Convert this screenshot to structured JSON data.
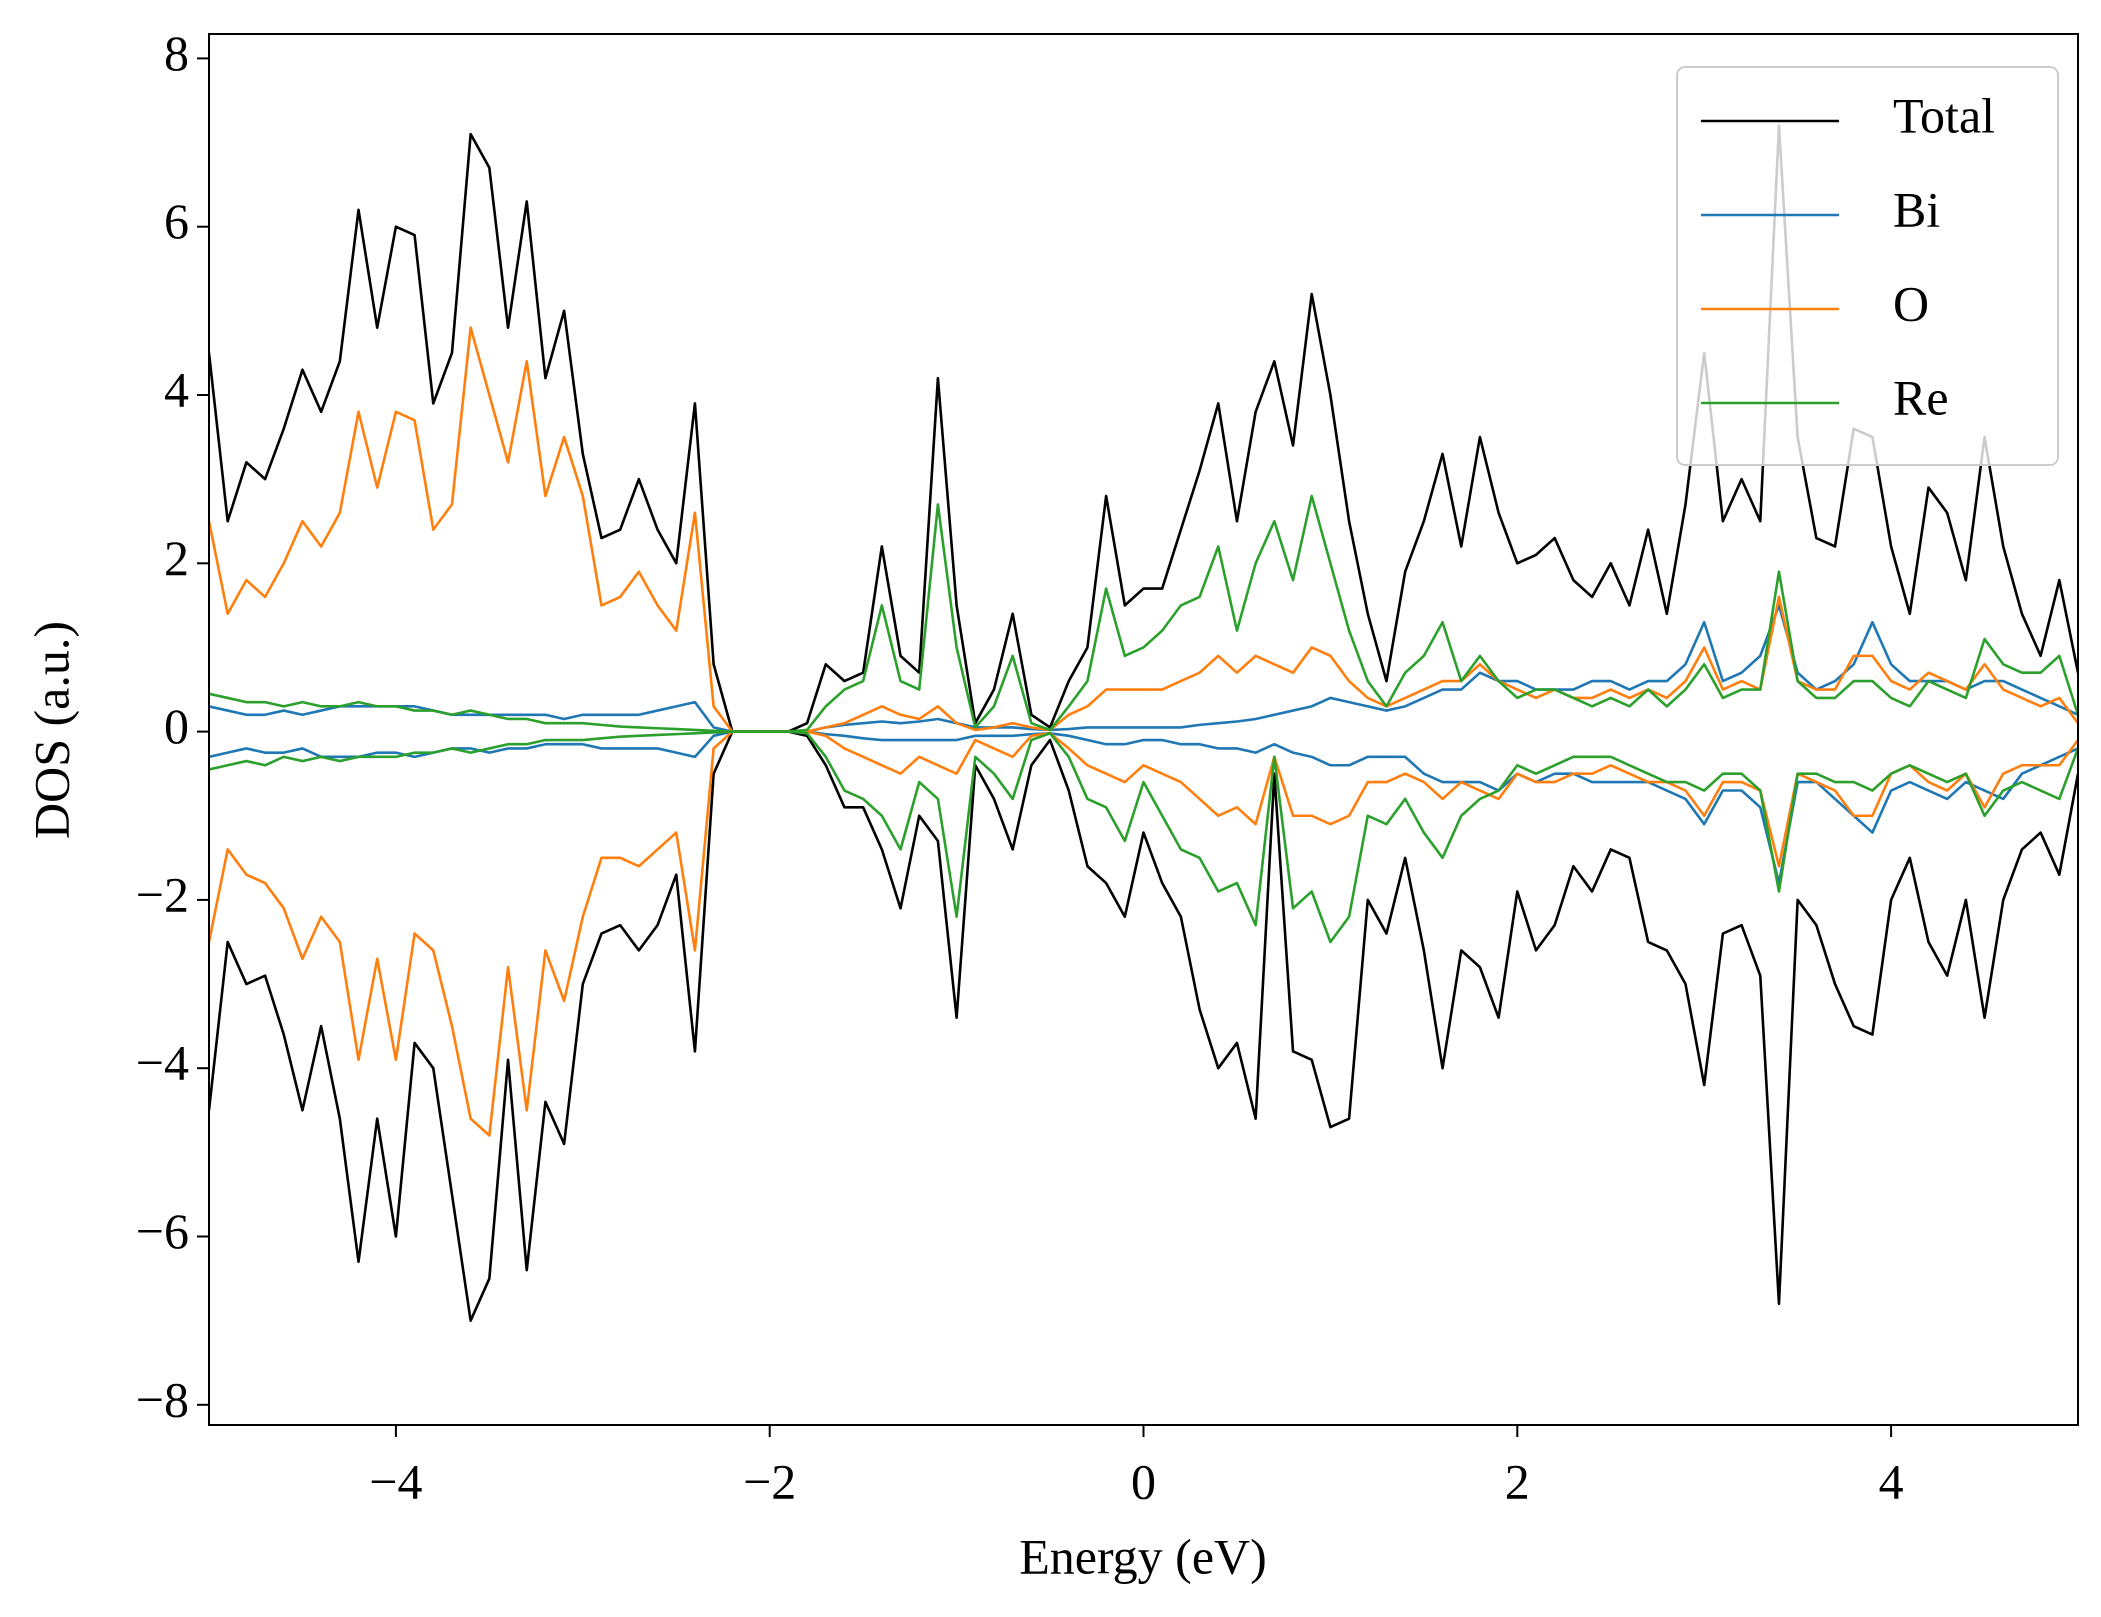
{
  "chart_data": {
    "type": "line",
    "xlabel": "Energy (eV)",
    "ylabel": "DOS (a.u.)",
    "xlim": [
      -5,
      5
    ],
    "ylim": [
      -8.24,
      8.29
    ],
    "xticks": [
      {
        "value": -4,
        "label": "−4"
      },
      {
        "value": -2,
        "label": "−2"
      },
      0,
      2,
      4
    ],
    "yticks": [
      {
        "value": -8,
        "label": "−8"
      },
      {
        "value": -6,
        "label": "−6"
      },
      {
        "value": -4,
        "label": "−4"
      },
      {
        "value": -2,
        "label": "−2"
      },
      0,
      2,
      4,
      6,
      8
    ],
    "legend": "upper right",
    "x": [
      -5.0,
      -4.9,
      -4.8,
      -4.7,
      -4.6,
      -4.5,
      -4.4,
      -4.3,
      -4.2,
      -4.1,
      -4.0,
      -3.9,
      -3.8,
      -3.7,
      -3.6,
      -3.5,
      -3.4,
      -3.3,
      -3.2,
      -3.1,
      -3.0,
      -2.9,
      -2.8,
      -2.7,
      -2.6,
      -2.5,
      -2.4,
      -2.3,
      -2.2,
      -2.1,
      -2.0,
      -1.9,
      -1.8,
      -1.7,
      -1.6,
      -1.5,
      -1.4,
      -1.3,
      -1.2,
      -1.1,
      -1.0,
      -0.9,
      -0.8,
      -0.7,
      -0.6,
      -0.5,
      -0.4,
      -0.3,
      -0.2,
      -0.1,
      0.0,
      0.1,
      0.2,
      0.3,
      0.4,
      0.5,
      0.6,
      0.7,
      0.8,
      0.9,
      1.0,
      1.1,
      1.2,
      1.3,
      1.4,
      1.5,
      1.6,
      1.7,
      1.8,
      1.9,
      2.0,
      2.1,
      2.2,
      2.3,
      2.4,
      2.5,
      2.6,
      2.7,
      2.8,
      2.9,
      3.0,
      3.1,
      3.2,
      3.3,
      3.4,
      3.5,
      3.6,
      3.7,
      3.8,
      3.9,
      4.0,
      4.1,
      4.2,
      4.3,
      4.4,
      4.5,
      4.6,
      4.7,
      4.8,
      4.9,
      5.0
    ],
    "series": [
      {
        "name": "Total",
        "color": "#000000",
        "values": [
          4.5,
          2.5,
          3.2,
          3.0,
          3.6,
          4.3,
          3.8,
          4.4,
          6.2,
          4.8,
          6.0,
          5.9,
          3.9,
          4.5,
          7.1,
          6.7,
          4.8,
          6.3,
          4.2,
          5.0,
          3.3,
          2.3,
          2.4,
          3.0,
          2.4,
          2.0,
          3.9,
          0.8,
          0,
          0,
          0,
          0,
          0.1,
          0.8,
          0.6,
          0.7,
          2.2,
          0.9,
          0.7,
          4.2,
          1.5,
          0.1,
          0.5,
          1.4,
          0.2,
          0.05,
          0.6,
          1.0,
          2.8,
          1.5,
          1.7,
          1.7,
          2.4,
          3.1,
          3.9,
          2.5,
          3.8,
          4.4,
          3.4,
          5.2,
          4.0,
          2.5,
          1.4,
          0.6,
          1.9,
          2.5,
          3.3,
          2.2,
          3.5,
          2.6,
          2.0,
          2.1,
          2.3,
          1.8,
          1.6,
          2.0,
          1.5,
          2.4,
          1.4,
          2.7,
          4.5,
          2.5,
          3.0,
          2.5,
          7.2,
          3.5,
          2.3,
          2.2,
          3.6,
          3.5,
          2.2,
          1.4,
          2.9,
          2.6,
          1.8,
          3.5,
          2.2,
          1.4,
          0.9,
          1.8,
          0.7
        ],
        "values_down": [
          -4.5,
          -2.5,
          -3.0,
          -2.9,
          -3.6,
          -4.5,
          -3.5,
          -4.6,
          -6.3,
          -4.6,
          -6.0,
          -3.7,
          -4.0,
          -5.5,
          -7.0,
          -6.5,
          -3.9,
          -6.4,
          -4.4,
          -4.9,
          -3.0,
          -2.4,
          -2.3,
          -2.6,
          -2.3,
          -1.7,
          -3.8,
          -0.5,
          0,
          0,
          0,
          0,
          -0.05,
          -0.4,
          -0.9,
          -0.9,
          -1.4,
          -2.1,
          -1.0,
          -1.3,
          -3.4,
          -0.4,
          -0.8,
          -1.4,
          -0.4,
          -0.1,
          -0.7,
          -1.6,
          -1.8,
          -2.2,
          -1.2,
          -1.8,
          -2.2,
          -3.3,
          -4.0,
          -3.7,
          -4.6,
          -0.5,
          -3.8,
          -3.9,
          -4.7,
          -4.6,
          -2.0,
          -2.4,
          -1.5,
          -2.6,
          -4.0,
          -2.6,
          -2.8,
          -3.4,
          -1.9,
          -2.6,
          -2.3,
          -1.6,
          -1.9,
          -1.4,
          -1.5,
          -2.5,
          -2.6,
          -3.0,
          -4.2,
          -2.4,
          -2.3,
          -2.9,
          -6.8,
          -2.0,
          -2.3,
          -3.0,
          -3.5,
          -3.6,
          -2.0,
          -1.5,
          -2.5,
          -2.9,
          -2.0,
          -3.4,
          -2.0,
          -1.4,
          -1.2,
          -1.7,
          -0.5
        ]
      },
      {
        "name": "Bi",
        "color": "#1f77b4",
        "values": [
          0.3,
          0.25,
          0.2,
          0.2,
          0.25,
          0.2,
          0.25,
          0.3,
          0.3,
          0.3,
          0.3,
          0.3,
          0.25,
          0.2,
          0.2,
          0.2,
          0.2,
          0.2,
          0.2,
          0.15,
          0.2,
          0.2,
          0.2,
          0.2,
          0.25,
          0.3,
          0.35,
          0.05,
          0,
          0,
          0,
          0,
          0,
          0.05,
          0.08,
          0.1,
          0.12,
          0.1,
          0.12,
          0.15,
          0.1,
          0.05,
          0.05,
          0.05,
          0.03,
          0.02,
          0.03,
          0.05,
          0.05,
          0.05,
          0.05,
          0.05,
          0.05,
          0.08,
          0.1,
          0.12,
          0.15,
          0.2,
          0.25,
          0.3,
          0.4,
          0.35,
          0.3,
          0.25,
          0.3,
          0.4,
          0.5,
          0.5,
          0.7,
          0.6,
          0.6,
          0.5,
          0.5,
          0.5,
          0.6,
          0.6,
          0.5,
          0.6,
          0.6,
          0.8,
          1.3,
          0.6,
          0.7,
          0.9,
          1.5,
          0.7,
          0.5,
          0.6,
          0.8,
          1.3,
          0.8,
          0.6,
          0.6,
          0.6,
          0.5,
          0.6,
          0.6,
          0.5,
          0.4,
          0.3,
          0.2
        ],
        "values_down": [
          -0.3,
          -0.25,
          -0.2,
          -0.25,
          -0.25,
          -0.2,
          -0.3,
          -0.3,
          -0.3,
          -0.25,
          -0.25,
          -0.3,
          -0.25,
          -0.2,
          -0.2,
          -0.25,
          -0.2,
          -0.2,
          -0.15,
          -0.15,
          -0.15,
          -0.2,
          -0.2,
          -0.2,
          -0.2,
          -0.25,
          -0.3,
          -0.05,
          0,
          0,
          0,
          0,
          0,
          -0.03,
          -0.05,
          -0.08,
          -0.1,
          -0.1,
          -0.1,
          -0.1,
          -0.1,
          -0.05,
          -0.05,
          -0.05,
          -0.03,
          -0.02,
          -0.05,
          -0.1,
          -0.15,
          -0.15,
          -0.1,
          -0.1,
          -0.15,
          -0.15,
          -0.2,
          -0.2,
          -0.25,
          -0.15,
          -0.25,
          -0.3,
          -0.4,
          -0.4,
          -0.3,
          -0.3,
          -0.3,
          -0.5,
          -0.6,
          -0.6,
          -0.6,
          -0.7,
          -0.5,
          -0.6,
          -0.5,
          -0.5,
          -0.6,
          -0.6,
          -0.6,
          -0.6,
          -0.7,
          -0.8,
          -1.1,
          -0.7,
          -0.7,
          -0.9,
          -1.8,
          -0.6,
          -0.6,
          -0.8,
          -1.0,
          -1.2,
          -0.7,
          -0.6,
          -0.7,
          -0.8,
          -0.6,
          -0.7,
          -0.8,
          -0.5,
          -0.4,
          -0.3,
          -0.2
        ]
      },
      {
        "name": "O",
        "color": "#ff7f0e",
        "values": [
          2.5,
          1.4,
          1.8,
          1.6,
          2.0,
          2.5,
          2.2,
          2.6,
          3.8,
          2.9,
          3.8,
          3.7,
          2.4,
          2.7,
          4.8,
          4.0,
          3.2,
          4.4,
          2.8,
          3.5,
          2.8,
          1.5,
          1.6,
          1.9,
          1.5,
          1.2,
          2.6,
          0.3,
          0,
          0,
          0,
          0,
          0,
          0.05,
          0.1,
          0.2,
          0.3,
          0.2,
          0.15,
          0.3,
          0.1,
          0.02,
          0.05,
          0.1,
          0.05,
          0.02,
          0.2,
          0.3,
          0.5,
          0.5,
          0.5,
          0.5,
          0.6,
          0.7,
          0.9,
          0.7,
          0.9,
          0.8,
          0.7,
          1.0,
          0.9,
          0.6,
          0.4,
          0.3,
          0.4,
          0.5,
          0.6,
          0.6,
          0.8,
          0.6,
          0.5,
          0.4,
          0.5,
          0.4,
          0.4,
          0.5,
          0.4,
          0.5,
          0.4,
          0.6,
          1.0,
          0.5,
          0.6,
          0.5,
          1.6,
          0.6,
          0.5,
          0.5,
          0.9,
          0.9,
          0.6,
          0.5,
          0.7,
          0.6,
          0.5,
          0.8,
          0.5,
          0.4,
          0.3,
          0.4,
          0.1
        ],
        "values_down": [
          -2.5,
          -1.4,
          -1.7,
          -1.8,
          -2.1,
          -2.7,
          -2.2,
          -2.5,
          -3.9,
          -2.7,
          -3.9,
          -2.4,
          -2.6,
          -3.5,
          -4.6,
          -4.8,
          -2.8,
          -4.5,
          -2.6,
          -3.2,
          -2.2,
          -1.5,
          -1.5,
          -1.6,
          -1.4,
          -1.2,
          -2.6,
          -0.2,
          0,
          0,
          0,
          0,
          0,
          -0.05,
          -0.2,
          -0.3,
          -0.4,
          -0.5,
          -0.3,
          -0.4,
          -0.5,
          -0.1,
          -0.2,
          -0.3,
          -0.05,
          -0.02,
          -0.2,
          -0.4,
          -0.5,
          -0.6,
          -0.4,
          -0.5,
          -0.6,
          -0.8,
          -1.0,
          -0.9,
          -1.1,
          -0.3,
          -1.0,
          -1.0,
          -1.1,
          -1.0,
          -0.6,
          -0.6,
          -0.5,
          -0.6,
          -0.8,
          -0.6,
          -0.7,
          -0.8,
          -0.5,
          -0.6,
          -0.6,
          -0.5,
          -0.5,
          -0.4,
          -0.5,
          -0.6,
          -0.6,
          -0.7,
          -1.0,
          -0.6,
          -0.6,
          -0.7,
          -1.6,
          -0.5,
          -0.6,
          -0.7,
          -1.0,
          -1.0,
          -0.5,
          -0.4,
          -0.6,
          -0.7,
          -0.5,
          -0.9,
          -0.5,
          -0.4,
          -0.4,
          -0.4,
          -0.1
        ]
      },
      {
        "name": "Re",
        "color": "#2ca02c",
        "values": [
          0.45,
          0.4,
          0.35,
          0.35,
          0.3,
          0.35,
          0.3,
          0.3,
          0.35,
          0.3,
          0.3,
          0.25,
          0.25,
          0.2,
          0.25,
          0.2,
          0.15,
          0.15,
          0.1,
          0.1,
          0.1,
          0.08,
          0.06,
          0.05,
          0.04,
          0.03,
          0.02,
          0.01,
          0,
          0,
          0,
          0,
          0.02,
          0.3,
          0.5,
          0.6,
          1.5,
          0.6,
          0.5,
          2.7,
          1.0,
          0.05,
          0.3,
          0.9,
          0.1,
          0.02,
          0.3,
          0.6,
          1.7,
          0.9,
          1.0,
          1.2,
          1.5,
          1.6,
          2.2,
          1.2,
          2.0,
          2.5,
          1.8,
          2.8,
          2.0,
          1.2,
          0.6,
          0.3,
          0.7,
          0.9,
          1.3,
          0.6,
          0.9,
          0.6,
          0.4,
          0.5,
          0.5,
          0.4,
          0.3,
          0.4,
          0.3,
          0.5,
          0.3,
          0.5,
          0.8,
          0.4,
          0.5,
          0.5,
          1.9,
          0.6,
          0.4,
          0.4,
          0.6,
          0.6,
          0.4,
          0.3,
          0.6,
          0.5,
          0.4,
          1.1,
          0.8,
          0.7,
          0.7,
          0.9,
          0.2
        ],
        "values_down": [
          -0.45,
          -0.4,
          -0.35,
          -0.4,
          -0.3,
          -0.35,
          -0.3,
          -0.35,
          -0.3,
          -0.3,
          -0.3,
          -0.25,
          -0.25,
          -0.2,
          -0.25,
          -0.2,
          -0.15,
          -0.15,
          -0.1,
          -0.1,
          -0.1,
          -0.08,
          -0.06,
          -0.05,
          -0.04,
          -0.03,
          -0.02,
          -0.01,
          0,
          0,
          0,
          0,
          -0.02,
          -0.3,
          -0.7,
          -0.8,
          -1.0,
          -1.4,
          -0.6,
          -0.8,
          -2.2,
          -0.3,
          -0.5,
          -0.8,
          -0.1,
          -0.02,
          -0.3,
          -0.8,
          -0.9,
          -1.3,
          -0.6,
          -1.0,
          -1.4,
          -1.5,
          -1.9,
          -1.8,
          -2.3,
          -0.3,
          -2.1,
          -1.9,
          -2.5,
          -2.2,
          -1.0,
          -1.1,
          -0.8,
          -1.2,
          -1.5,
          -1.0,
          -0.8,
          -0.7,
          -0.4,
          -0.5,
          -0.4,
          -0.3,
          -0.3,
          -0.3,
          -0.4,
          -0.5,
          -0.6,
          -0.6,
          -0.7,
          -0.5,
          -0.5,
          -0.7,
          -1.9,
          -0.5,
          -0.5,
          -0.6,
          -0.6,
          -0.7,
          -0.5,
          -0.4,
          -0.5,
          -0.6,
          -0.5,
          -1.0,
          -0.7,
          -0.6,
          -0.7,
          -0.8,
          -0.2
        ]
      }
    ]
  }
}
